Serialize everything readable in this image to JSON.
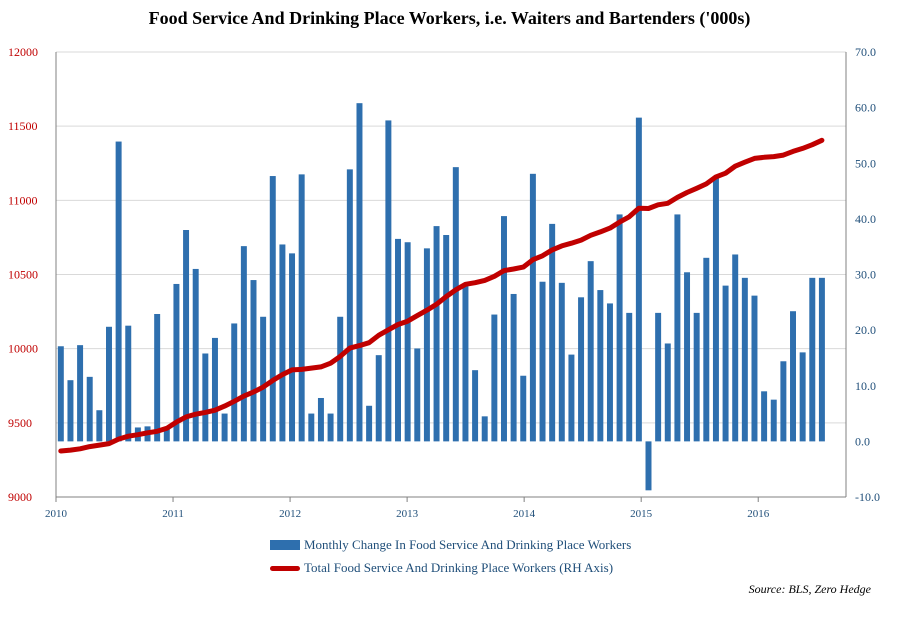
{
  "chart_data": {
    "type": "bar+line",
    "title": "Food Service And Drinking Place Workers, i.e. Waiters and Bartenders ('000s)",
    "x_tick_labels": [
      "2010",
      "2011",
      "2012",
      "2013",
      "2014",
      "2015",
      "2016"
    ],
    "left_axis": {
      "ticks": [
        "9000",
        "9500",
        "10000",
        "10500",
        "11000",
        "11500",
        "12000"
      ],
      "range": [
        9000,
        12000
      ]
    },
    "right_axis": {
      "ticks": [
        "-10.0",
        "0.0",
        "10.0",
        "20.0",
        "30.0",
        "40.0",
        "50.0",
        "60.0",
        "70.0"
      ],
      "range": [
        -10,
        70
      ]
    },
    "grid": true,
    "legend_position": "bottom",
    "series": [
      {
        "name": "Monthly Change In Food Service And Drinking Place Workers",
        "type": "bar",
        "axis": "right",
        "color": "#2e6fae",
        "values": [
          17.1,
          11.0,
          17.3,
          11.6,
          5.6,
          20.6,
          53.9,
          20.8,
          2.5,
          2.7,
          22.9,
          2.5,
          28.3,
          38.0,
          31.0,
          15.8,
          18.6,
          5.0,
          21.2,
          35.1,
          29.0,
          22.4,
          47.7,
          35.4,
          33.8,
          48.0,
          5.0,
          7.8,
          5.0,
          22.4,
          48.9,
          60.8,
          6.4,
          15.5,
          57.7,
          36.4,
          35.8,
          16.7,
          34.7,
          38.7,
          37.1,
          49.3,
          27.9,
          12.8,
          4.5,
          22.8,
          40.5,
          26.5,
          11.8,
          48.1,
          28.7,
          39.1,
          28.5,
          15.6,
          25.9,
          32.4,
          27.2,
          24.8,
          40.8,
          23.1,
          58.2,
          -8.8,
          23.1,
          17.6,
          40.8,
          30.4,
          23.1,
          33.0,
          47.5,
          28.0,
          33.6,
          29.4,
          26.2,
          9.0,
          7.5,
          14.4,
          23.4,
          16.0,
          29.4,
          29.4
        ]
      },
      {
        "name": "Total Food Service And Drinking Place Workers (RH Axis)",
        "type": "line",
        "axis": "left",
        "color": "#c00000",
        "values": [
          9310,
          9316,
          9325,
          9340,
          9350,
          9360,
          9390,
          9410,
          9420,
          9433,
          9443,
          9463,
          9505,
          9540,
          9558,
          9570,
          9585,
          9613,
          9645,
          9680,
          9708,
          9741,
          9786,
          9825,
          9857,
          9860,
          9869,
          9877,
          9902,
          9948,
          10004,
          10021,
          10040,
          10090,
          10127,
          10163,
          10185,
          10223,
          10259,
          10299,
          10351,
          10397,
          10434,
          10445,
          10460,
          10488,
          10526,
          10537,
          10550,
          10600,
          10626,
          10666,
          10693,
          10711,
          10732,
          10764,
          10787,
          10813,
          10853,
          10889,
          10947,
          10945,
          10970,
          10980,
          11020,
          11053,
          11081,
          11111,
          11158,
          11183,
          11230,
          11257,
          11283,
          11290,
          11295,
          11305,
          11330,
          11350,
          11375,
          11405
        ]
      }
    ],
    "source": "Source: BLS, Zero Hedge"
  }
}
